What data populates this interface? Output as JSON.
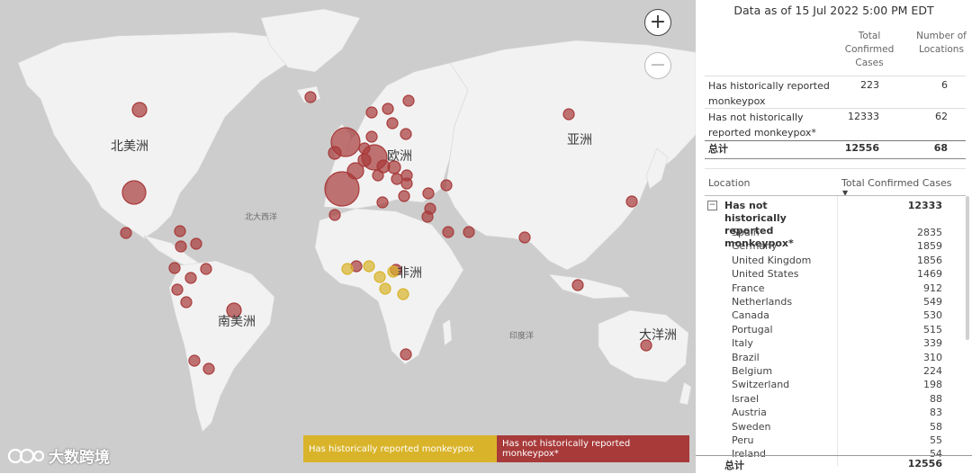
{
  "map": {
    "continents": [
      {
        "id": "north-america",
        "label": "北美洲"
      },
      {
        "id": "south-america",
        "label": "南美洲"
      },
      {
        "id": "europe",
        "label": "欧洲"
      },
      {
        "id": "africa",
        "label": "非洲"
      },
      {
        "id": "asia",
        "label": "亚洲"
      },
      {
        "id": "oceania",
        "label": "大洋洲"
      }
    ],
    "oceans": [
      {
        "id": "north-atlantic",
        "label": "北大西洋"
      },
      {
        "id": "indian-ocean",
        "label": "印度洋"
      }
    ],
    "zoom_in_symbol": "+",
    "zoom_out_symbol": "−",
    "colors": {
      "not_historical": "#a83a3a",
      "historical": "#d9b42a",
      "land": "#f2f2f2",
      "water": "#cdcdcd"
    },
    "legend": {
      "historical": "Has historically reported monkeypox",
      "not_historical": "Has not historically reported monkeypox*"
    },
    "watermark": "大数跨境"
  },
  "panel": {
    "data_as_of": "Data as of 15 Jul 2022 5:00 PM EDT",
    "summary": {
      "col_total": "Total Confirmed Cases",
      "col_locations": "Number of Locations",
      "rows": [
        {
          "label": "Has historically reported monkeypox",
          "total": "223",
          "locations": "6"
        },
        {
          "label": "Has not historically reported monkeypox*",
          "total": "12333",
          "locations": "62"
        }
      ],
      "total_label": "总计",
      "total_cases": "12556",
      "total_locations": "68"
    },
    "detail": {
      "col_location": "Location",
      "col_total": "Total Confirmed Cases",
      "group_label": "Has not historically reported monkeypox*",
      "group_total": "12333",
      "rows": [
        {
          "location": "Spain",
          "value": "2835"
        },
        {
          "location": "Germany",
          "value": "1859"
        },
        {
          "location": "United Kingdom",
          "value": "1856"
        },
        {
          "location": "United States",
          "value": "1469"
        },
        {
          "location": "France",
          "value": "912"
        },
        {
          "location": "Netherlands",
          "value": "549"
        },
        {
          "location": "Canada",
          "value": "530"
        },
        {
          "location": "Portugal",
          "value": "515"
        },
        {
          "location": "Italy",
          "value": "339"
        },
        {
          "location": "Brazil",
          "value": "310"
        },
        {
          "location": "Belgium",
          "value": "224"
        },
        {
          "location": "Switzerland",
          "value": "198"
        },
        {
          "location": "Israel",
          "value": "88"
        },
        {
          "location": "Austria",
          "value": "83"
        },
        {
          "location": "Sweden",
          "value": "58"
        },
        {
          "location": "Peru",
          "value": "55"
        },
        {
          "location": "Ireland",
          "value": "54"
        }
      ],
      "total_label": "总计",
      "total_value": "12556"
    }
  }
}
